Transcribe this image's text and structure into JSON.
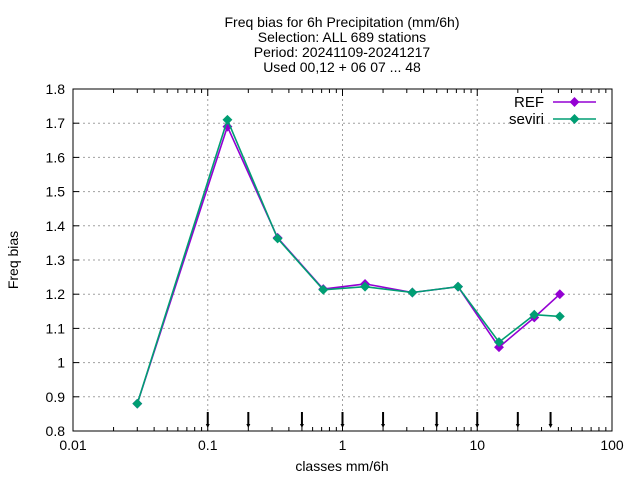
{
  "chart_data": {
    "type": "line",
    "title_lines": [
      "Freq bias  for 6h Precipitation (mm/6h)",
      "Selection: ALL    689 stations",
      "Period: 20241109-20241217",
      "Used 00,12 + 06 07 ... 48"
    ],
    "xlabel": "classes mm/6h",
    "ylabel": "Freq bias",
    "xscale": "log",
    "xlim": [
      0.01,
      100
    ],
    "ylim": [
      0.8,
      1.8
    ],
    "xticks": [
      {
        "value": 0.01,
        "label": "0.01"
      },
      {
        "value": 0.1,
        "label": "0.1"
      },
      {
        "value": 1,
        "label": "1"
      },
      {
        "value": 10,
        "label": "10"
      },
      {
        "value": 100,
        "label": "100"
      }
    ],
    "yticks": [
      {
        "value": 0.8,
        "label": "0.8"
      },
      {
        "value": 0.9,
        "label": "0.9"
      },
      {
        "value": 1.0,
        "label": "1"
      },
      {
        "value": 1.1,
        "label": "1.1"
      },
      {
        "value": 1.2,
        "label": "1.2"
      },
      {
        "value": 1.3,
        "label": "1.3"
      },
      {
        "value": 1.4,
        "label": "1.4"
      },
      {
        "value": 1.5,
        "label": "1.5"
      },
      {
        "value": 1.6,
        "label": "1.6"
      },
      {
        "value": 1.7,
        "label": "1.7"
      },
      {
        "value": 1.8,
        "label": "1.8"
      }
    ],
    "grid": true,
    "legend_position": "top-right",
    "class_thresholds": [
      0.1,
      0.2,
      0.5,
      1,
      2,
      5,
      10,
      20,
      35
    ],
    "series": [
      {
        "name": "REF",
        "color": "#9400d3",
        "x": [
          0.03,
          0.14,
          0.33,
          0.72,
          1.47,
          3.3,
          7.2,
          14.5,
          26.5,
          41
        ],
        "y": [
          0.88,
          1.69,
          1.365,
          1.215,
          1.23,
          1.205,
          1.222,
          1.045,
          1.132,
          1.2
        ]
      },
      {
        "name": "seviri",
        "color": "#009e73",
        "x": [
          0.03,
          0.14,
          0.33,
          0.72,
          1.47,
          3.3,
          7.2,
          14.5,
          26.5,
          41
        ],
        "y": [
          0.88,
          1.71,
          1.363,
          1.213,
          1.222,
          1.205,
          1.222,
          1.06,
          1.14,
          1.135
        ]
      }
    ]
  }
}
